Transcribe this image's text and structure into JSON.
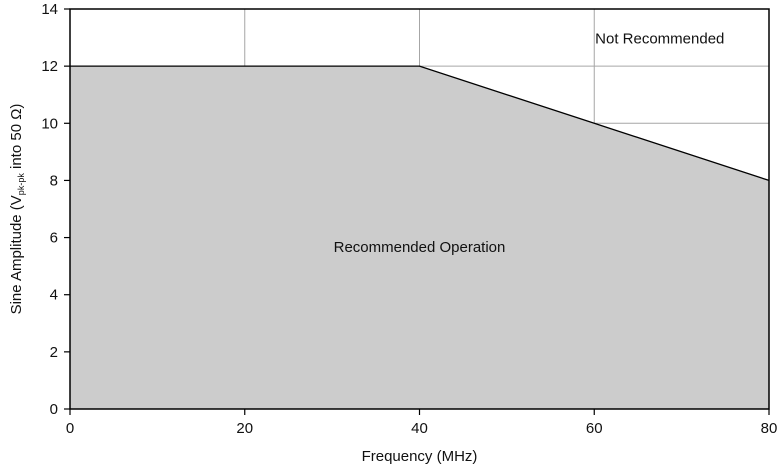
{
  "chart_data": {
    "type": "area",
    "title": "",
    "xlabel": "Frequency (MHz)",
    "ylabel": {
      "prefix": "Sine Amplitude (V",
      "subscript": "pk-pk",
      "suffix": " into 50 Ω)"
    },
    "xlim": [
      0,
      80
    ],
    "ylim": [
      0,
      14
    ],
    "xticks": [
      0,
      20,
      40,
      60,
      80
    ],
    "yticks": [
      0,
      2,
      4,
      6,
      8,
      10,
      12,
      14
    ],
    "grid": true,
    "boundary": {
      "x": [
        0,
        40,
        60,
        80
      ],
      "y": [
        12,
        12,
        10,
        8
      ]
    },
    "regions": [
      {
        "label": "Recommended Operation",
        "where": "below boundary",
        "fill": "#cccccc",
        "label_at": [
          40,
          5.5
        ]
      },
      {
        "label": "Not Recommended",
        "where": "above boundary",
        "fill": "#ffffff",
        "label_at": [
          67.5,
          12.8
        ]
      }
    ],
    "colors": {
      "fill": "#cccccc",
      "grid": "#a6a6a6",
      "line": "#000000",
      "axis": "#000000"
    }
  }
}
